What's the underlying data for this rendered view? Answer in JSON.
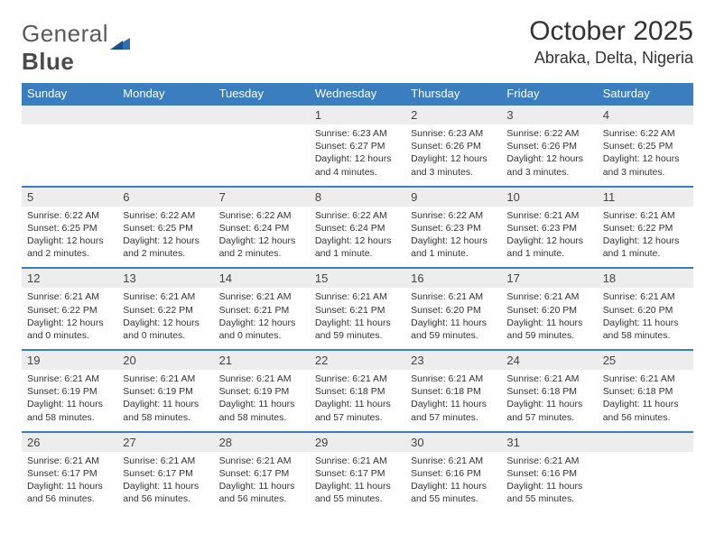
{
  "brand": {
    "part1": "General",
    "part2": "Blue"
  },
  "title": "October 2025",
  "location": "Abraka, Delta, Nigeria",
  "colors": {
    "header_bg": "#3b7ec0",
    "header_text": "#ffffff",
    "daynum_bg": "#ededed",
    "border": "#3b7ec0",
    "text": "#333333",
    "logo_gray": "#5a5a5a"
  },
  "fonts": {
    "title_size": 30,
    "location_size": 18,
    "header_size": 13,
    "cell_size": 10.5
  },
  "weekdays": [
    "Sunday",
    "Monday",
    "Tuesday",
    "Wednesday",
    "Thursday",
    "Friday",
    "Saturday"
  ],
  "weeks": [
    {
      "nums": [
        "",
        "",
        "",
        "1",
        "2",
        "3",
        "4"
      ],
      "cells": [
        null,
        null,
        null,
        {
          "sunrise": "Sunrise: 6:23 AM",
          "sunset": "Sunset: 6:27 PM",
          "day1": "Daylight: 12 hours",
          "day2": "and 4 minutes."
        },
        {
          "sunrise": "Sunrise: 6:23 AM",
          "sunset": "Sunset: 6:26 PM",
          "day1": "Daylight: 12 hours",
          "day2": "and 3 minutes."
        },
        {
          "sunrise": "Sunrise: 6:22 AM",
          "sunset": "Sunset: 6:26 PM",
          "day1": "Daylight: 12 hours",
          "day2": "and 3 minutes."
        },
        {
          "sunrise": "Sunrise: 6:22 AM",
          "sunset": "Sunset: 6:25 PM",
          "day1": "Daylight: 12 hours",
          "day2": "and 3 minutes."
        }
      ]
    },
    {
      "nums": [
        "5",
        "6",
        "7",
        "8",
        "9",
        "10",
        "11"
      ],
      "cells": [
        {
          "sunrise": "Sunrise: 6:22 AM",
          "sunset": "Sunset: 6:25 PM",
          "day1": "Daylight: 12 hours",
          "day2": "and 2 minutes."
        },
        {
          "sunrise": "Sunrise: 6:22 AM",
          "sunset": "Sunset: 6:25 PM",
          "day1": "Daylight: 12 hours",
          "day2": "and 2 minutes."
        },
        {
          "sunrise": "Sunrise: 6:22 AM",
          "sunset": "Sunset: 6:24 PM",
          "day1": "Daylight: 12 hours",
          "day2": "and 2 minutes."
        },
        {
          "sunrise": "Sunrise: 6:22 AM",
          "sunset": "Sunset: 6:24 PM",
          "day1": "Daylight: 12 hours",
          "day2": "and 1 minute."
        },
        {
          "sunrise": "Sunrise: 6:22 AM",
          "sunset": "Sunset: 6:23 PM",
          "day1": "Daylight: 12 hours",
          "day2": "and 1 minute."
        },
        {
          "sunrise": "Sunrise: 6:21 AM",
          "sunset": "Sunset: 6:23 PM",
          "day1": "Daylight: 12 hours",
          "day2": "and 1 minute."
        },
        {
          "sunrise": "Sunrise: 6:21 AM",
          "sunset": "Sunset: 6:22 PM",
          "day1": "Daylight: 12 hours",
          "day2": "and 1 minute."
        }
      ]
    },
    {
      "nums": [
        "12",
        "13",
        "14",
        "15",
        "16",
        "17",
        "18"
      ],
      "cells": [
        {
          "sunrise": "Sunrise: 6:21 AM",
          "sunset": "Sunset: 6:22 PM",
          "day1": "Daylight: 12 hours",
          "day2": "and 0 minutes."
        },
        {
          "sunrise": "Sunrise: 6:21 AM",
          "sunset": "Sunset: 6:22 PM",
          "day1": "Daylight: 12 hours",
          "day2": "and 0 minutes."
        },
        {
          "sunrise": "Sunrise: 6:21 AM",
          "sunset": "Sunset: 6:21 PM",
          "day1": "Daylight: 12 hours",
          "day2": "and 0 minutes."
        },
        {
          "sunrise": "Sunrise: 6:21 AM",
          "sunset": "Sunset: 6:21 PM",
          "day1": "Daylight: 11 hours",
          "day2": "and 59 minutes."
        },
        {
          "sunrise": "Sunrise: 6:21 AM",
          "sunset": "Sunset: 6:20 PM",
          "day1": "Daylight: 11 hours",
          "day2": "and 59 minutes."
        },
        {
          "sunrise": "Sunrise: 6:21 AM",
          "sunset": "Sunset: 6:20 PM",
          "day1": "Daylight: 11 hours",
          "day2": "and 59 minutes."
        },
        {
          "sunrise": "Sunrise: 6:21 AM",
          "sunset": "Sunset: 6:20 PM",
          "day1": "Daylight: 11 hours",
          "day2": "and 58 minutes."
        }
      ]
    },
    {
      "nums": [
        "19",
        "20",
        "21",
        "22",
        "23",
        "24",
        "25"
      ],
      "cells": [
        {
          "sunrise": "Sunrise: 6:21 AM",
          "sunset": "Sunset: 6:19 PM",
          "day1": "Daylight: 11 hours",
          "day2": "and 58 minutes."
        },
        {
          "sunrise": "Sunrise: 6:21 AM",
          "sunset": "Sunset: 6:19 PM",
          "day1": "Daylight: 11 hours",
          "day2": "and 58 minutes."
        },
        {
          "sunrise": "Sunrise: 6:21 AM",
          "sunset": "Sunset: 6:19 PM",
          "day1": "Daylight: 11 hours",
          "day2": "and 58 minutes."
        },
        {
          "sunrise": "Sunrise: 6:21 AM",
          "sunset": "Sunset: 6:18 PM",
          "day1": "Daylight: 11 hours",
          "day2": "and 57 minutes."
        },
        {
          "sunrise": "Sunrise: 6:21 AM",
          "sunset": "Sunset: 6:18 PM",
          "day1": "Daylight: 11 hours",
          "day2": "and 57 minutes."
        },
        {
          "sunrise": "Sunrise: 6:21 AM",
          "sunset": "Sunset: 6:18 PM",
          "day1": "Daylight: 11 hours",
          "day2": "and 57 minutes."
        },
        {
          "sunrise": "Sunrise: 6:21 AM",
          "sunset": "Sunset: 6:18 PM",
          "day1": "Daylight: 11 hours",
          "day2": "and 56 minutes."
        }
      ]
    },
    {
      "nums": [
        "26",
        "27",
        "28",
        "29",
        "30",
        "31",
        ""
      ],
      "cells": [
        {
          "sunrise": "Sunrise: 6:21 AM",
          "sunset": "Sunset: 6:17 PM",
          "day1": "Daylight: 11 hours",
          "day2": "and 56 minutes."
        },
        {
          "sunrise": "Sunrise: 6:21 AM",
          "sunset": "Sunset: 6:17 PM",
          "day1": "Daylight: 11 hours",
          "day2": "and 56 minutes."
        },
        {
          "sunrise": "Sunrise: 6:21 AM",
          "sunset": "Sunset: 6:17 PM",
          "day1": "Daylight: 11 hours",
          "day2": "and 56 minutes."
        },
        {
          "sunrise": "Sunrise: 6:21 AM",
          "sunset": "Sunset: 6:17 PM",
          "day1": "Daylight: 11 hours",
          "day2": "and 55 minutes."
        },
        {
          "sunrise": "Sunrise: 6:21 AM",
          "sunset": "Sunset: 6:16 PM",
          "day1": "Daylight: 11 hours",
          "day2": "and 55 minutes."
        },
        {
          "sunrise": "Sunrise: 6:21 AM",
          "sunset": "Sunset: 6:16 PM",
          "day1": "Daylight: 11 hours",
          "day2": "and 55 minutes."
        },
        null
      ]
    }
  ]
}
